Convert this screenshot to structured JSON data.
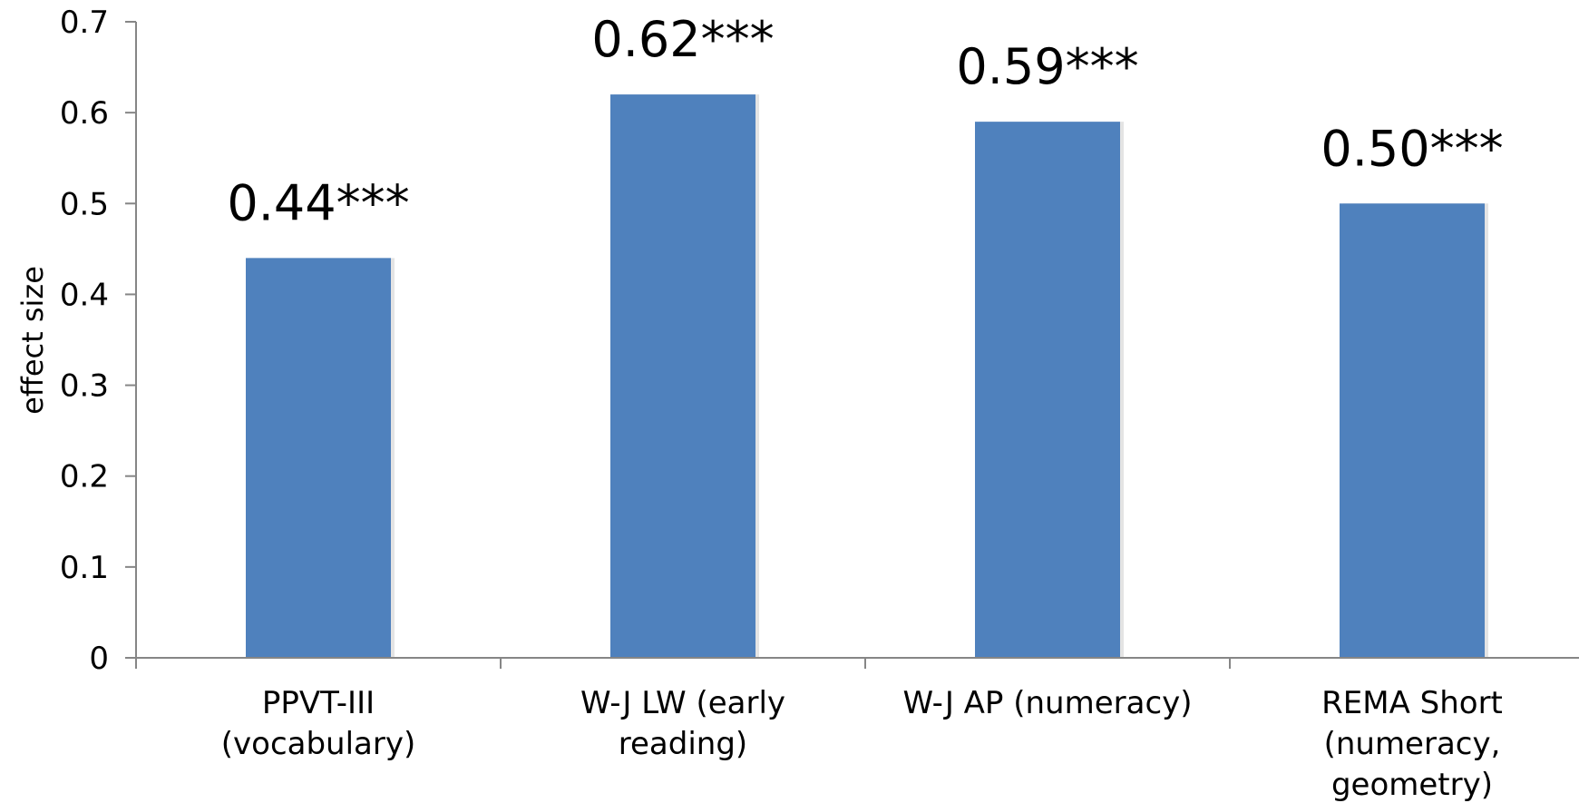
{
  "chart_data": {
    "type": "bar",
    "categories": [
      [
        "PPVT-III",
        "(vocabulary)"
      ],
      [
        "W-J LW (early",
        "reading)"
      ],
      [
        "W-J AP (numeracy)"
      ],
      [
        "REMA Short",
        "(numeracy,",
        "geometry)"
      ]
    ],
    "values": [
      0.44,
      0.62,
      0.59,
      0.5
    ],
    "data_labels": [
      "0.44***",
      "0.62***",
      "0.59***",
      "0.50***"
    ],
    "ylabel": "effect size",
    "xlabel": "",
    "ylim": [
      0,
      0.7
    ],
    "yticks": [
      "0",
      "0.1",
      "0.2",
      "0.3",
      "0.4",
      "0.5",
      "0.6",
      "0.7"
    ],
    "bar_color": "#4F81BD",
    "axis_color": "#868686",
    "grid": false,
    "legend": "none"
  }
}
